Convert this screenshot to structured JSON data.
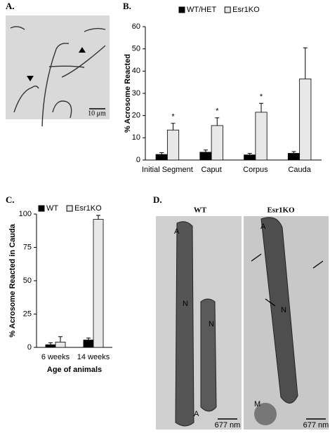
{
  "panels": {
    "a": "A.",
    "b": "B.",
    "c": "C.",
    "d": "D."
  },
  "micrograph_a": {
    "scale_bar": "10 μm"
  },
  "micrograph_d": {
    "left_title": "WT",
    "right_title": "Esr1KO",
    "left_labels": [
      "A",
      "N",
      "N",
      "A"
    ],
    "right_labels": [
      "A",
      "N",
      "M"
    ],
    "left_scale": "677 nm",
    "right_scale": "677 nm"
  },
  "chart_data": [
    {
      "type": "bar",
      "y_label": "% Acrosome Reacted",
      "categories": [
        "Initial Segment",
        "Caput",
        "Corpus",
        "Cauda"
      ],
      "series": [
        {
          "name": "WT/HET",
          "color": "#000000",
          "values": [
            2.5,
            3.5,
            2.3,
            3.0
          ],
          "errors": [
            0.8,
            1.0,
            0.7,
            0.8
          ]
        },
        {
          "name": "Esr1KO",
          "color": "#e8e8e8",
          "values": [
            13.5,
            15.5,
            21.5,
            36.5
          ],
          "errors": [
            3.0,
            3.5,
            4.0,
            14.0
          ]
        }
      ],
      "annotations": [
        "*",
        "*",
        "*",
        null
      ],
      "ylim": [
        0,
        60
      ],
      "yticks": [
        0,
        10,
        20,
        30,
        40,
        50,
        60
      ],
      "grid": false,
      "legend": "top"
    },
    {
      "type": "bar",
      "y_label": "% Acrosome Reacted in Cauda",
      "x_label": "Age of animals",
      "categories": [
        "6 weeks",
        "14 weeks"
      ],
      "series": [
        {
          "name": "WT",
          "color": "#000000",
          "values": [
            2,
            5.5
          ],
          "errors": [
            1.5,
            1.5
          ]
        },
        {
          "name": "Esr1KO",
          "color": "#e8e8e8",
          "values": [
            4,
            96
          ],
          "errors": [
            4,
            3
          ]
        }
      ],
      "ylim": [
        0,
        100
      ],
      "yticks": [
        0,
        25,
        50,
        75,
        100
      ],
      "grid": false,
      "legend": "top"
    }
  ]
}
